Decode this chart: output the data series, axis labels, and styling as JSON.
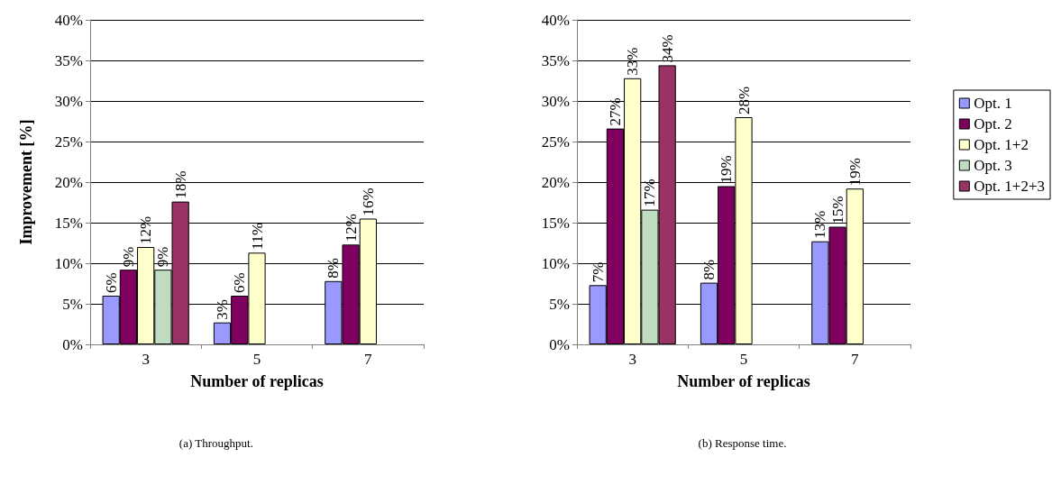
{
  "chart_data": [
    {
      "type": "bar",
      "xlabel": "Number of replicas",
      "ylabel": "Improvement [%]",
      "categories": [
        "3",
        "5",
        "7"
      ],
      "series": [
        {
          "color": "#9999ff",
          "values": [
            6,
            2.7,
            7.8
          ],
          "value_labels": [
            "6%",
            "3%",
            "8%"
          ]
        },
        {
          "color": "#800060",
          "values": [
            9.2,
            6,
            12.3
          ],
          "value_labels": [
            "9%",
            "6%",
            "12%"
          ]
        },
        {
          "color": "#ffffcc",
          "values": [
            12,
            11.3,
            15.5
          ],
          "value_labels": [
            "12%",
            "11%",
            "16%"
          ]
        },
        {
          "color": "#c0dcc0",
          "values": [
            9.2,
            null,
            null
          ],
          "value_labels": [
            "9%",
            null,
            null
          ]
        },
        {
          "color": "#993366",
          "values": [
            17.6,
            null,
            null
          ],
          "value_labels": [
            "18%",
            null,
            null
          ]
        }
      ],
      "ylim": [
        0,
        40
      ],
      "yticks": [
        {
          "value": 0,
          "label": "0%"
        },
        {
          "value": 5,
          "label": "5%"
        },
        {
          "value": 10,
          "label": "10%"
        },
        {
          "value": 15,
          "label": "15%"
        },
        {
          "value": 20,
          "label": "20%"
        },
        {
          "value": 25,
          "label": "25%"
        },
        {
          "value": 30,
          "label": "30%"
        },
        {
          "value": 35,
          "label": "35%"
        },
        {
          "value": 40,
          "label": "40%"
        }
      ],
      "grid": "y",
      "legend": false,
      "annotations": [
        "(a) Throughput."
      ]
    },
    {
      "type": "bar",
      "xlabel": "Number of replicas",
      "categories": [
        "3",
        "5",
        "7"
      ],
      "series": [
        {
          "name": "Opt. 1",
          "color": "#9999ff",
          "values": [
            7.3,
            7.6,
            12.7
          ],
          "value_labels": [
            "7%",
            "8%",
            "13%"
          ]
        },
        {
          "name": "Opt. 2",
          "color": "#800060",
          "values": [
            26.6,
            19.5,
            14.5
          ],
          "value_labels": [
            "27%",
            "19%",
            "15%"
          ]
        },
        {
          "name": "Opt. 1+2",
          "color": "#ffffcc",
          "values": [
            32.8,
            28,
            19.2
          ],
          "value_labels": [
            "33%",
            "28%",
            "19%"
          ]
        },
        {
          "name": "Opt. 3",
          "color": "#c0dcc0",
          "values": [
            16.6,
            null,
            null
          ],
          "value_labels": [
            "17%",
            null,
            null
          ]
        },
        {
          "name": "Opt. 1+2+3",
          "color": "#993366",
          "values": [
            34.4,
            null,
            null
          ],
          "value_labels": [
            "34%",
            null,
            null
          ]
        }
      ],
      "ylim": [
        0,
        40
      ],
      "yticks": [
        {
          "value": 0,
          "label": "0%"
        },
        {
          "value": 5,
          "label": "5%"
        },
        {
          "value": 10,
          "label": "10%"
        },
        {
          "value": 15,
          "label": "15%"
        },
        {
          "value": 20,
          "label": "20%"
        },
        {
          "value": 25,
          "label": "25%"
        },
        {
          "value": 30,
          "label": "30%"
        },
        {
          "value": 35,
          "label": "35%"
        },
        {
          "value": 40,
          "label": "40%"
        }
      ],
      "grid": "y",
      "legend": "right",
      "annotations": [
        "(b) Response time."
      ]
    }
  ]
}
